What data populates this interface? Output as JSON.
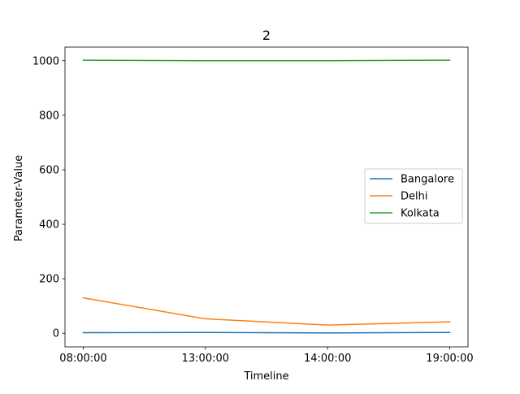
{
  "chart_data": {
    "type": "line",
    "title": "2",
    "xlabel": "Timeline",
    "ylabel": "Parameter-Value",
    "categories": [
      "08:00:00",
      "13:00:00",
      "14:00:00",
      "19:00:00"
    ],
    "yticks": [
      0,
      200,
      400,
      600,
      800,
      1000
    ],
    "ylim": [
      -50,
      1050
    ],
    "grid": false,
    "legend_position": "center-right",
    "series": [
      {
        "name": "Bangalore",
        "color": "#1f77b4",
        "values": [
          2,
          3,
          1,
          3
        ]
      },
      {
        "name": "Delhi",
        "color": "#ff7f0e",
        "values": [
          130,
          53,
          30,
          42
        ]
      },
      {
        "name": "Kolkata",
        "color": "#2ca02c",
        "values": [
          1002,
          1000,
          1000,
          1002
        ]
      }
    ]
  }
}
